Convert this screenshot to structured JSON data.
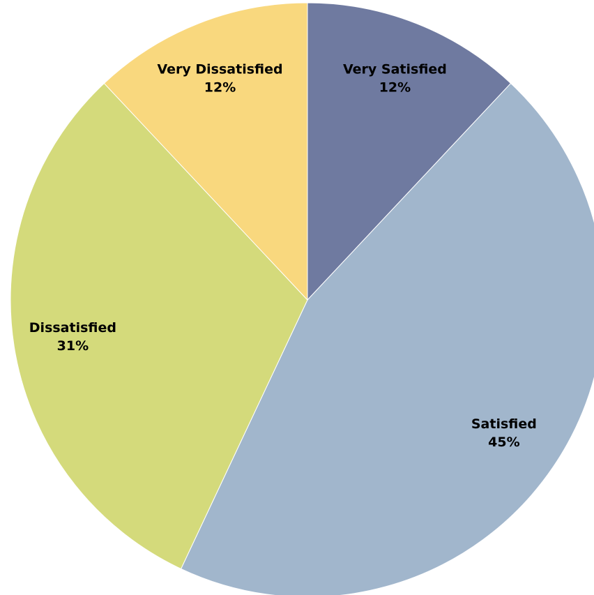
{
  "chart_data": {
    "type": "pie",
    "categories": [
      "Very Satisfied",
      "Satisfied",
      "Dissatisfied",
      "Very Dissatisfied"
    ],
    "values": [
      12,
      45,
      31,
      12
    ],
    "value_labels": [
      "12%",
      "45%",
      "31%",
      "12%"
    ],
    "colors": [
      "#6f7aa0",
      "#a1b6cc",
      "#d4da7b",
      "#f9d87e"
    ]
  }
}
